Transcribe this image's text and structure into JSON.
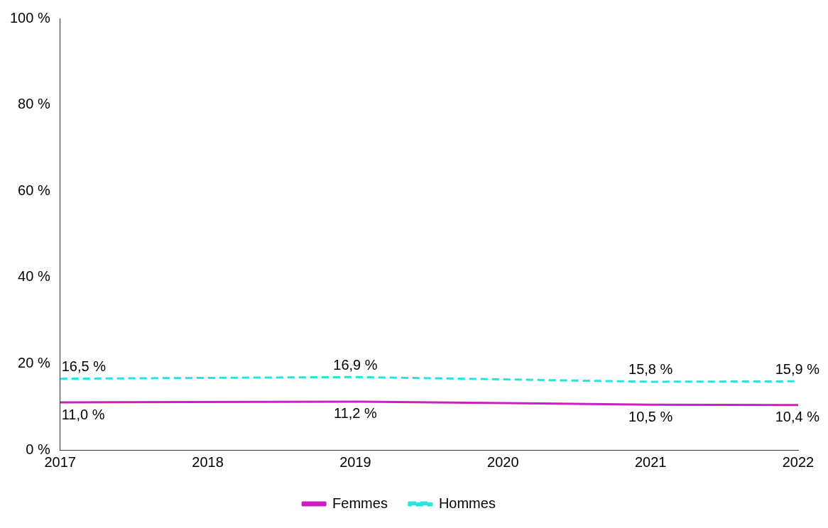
{
  "chart_data": {
    "type": "line",
    "x": [
      2017,
      2019,
      2021,
      2022
    ],
    "xlim": [
      2017,
      2022
    ],
    "xticks": [
      2017,
      2018,
      2019,
      2020,
      2021,
      2022
    ],
    "ylim": [
      0,
      100
    ],
    "yticks": [
      {
        "value": 0,
        "label": "0 %"
      },
      {
        "value": 20,
        "label": "20 %"
      },
      {
        "value": 40,
        "label": "40 %"
      },
      {
        "value": 60,
        "label": "60 %"
      },
      {
        "value": 80,
        "label": "80 %"
      },
      {
        "value": 100,
        "label": "100 %"
      }
    ],
    "series": [
      {
        "name": "Femmes",
        "color": "#cc1fbf",
        "line_style": "solid",
        "values": [
          11.0,
          11.2,
          10.5,
          10.4
        ],
        "value_labels": [
          "11,0 %",
          "11,2 %",
          "10,5 %",
          "10,4 %"
        ]
      },
      {
        "name": "Hommes",
        "color": "#1ee8e0",
        "line_style": "dashed",
        "values": [
          16.5,
          16.9,
          15.8,
          15.9
        ],
        "value_labels": [
          "16,5 %",
          "16,9 %",
          "15,8 %",
          "15,9 %"
        ]
      }
    ],
    "grid": false,
    "legend": "bottom",
    "marker": "none"
  }
}
